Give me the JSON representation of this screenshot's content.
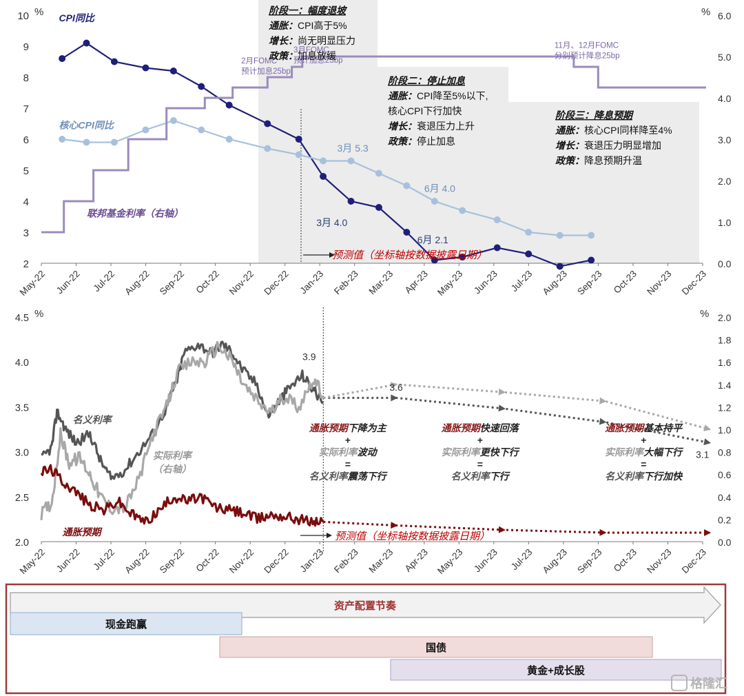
{
  "chart_data": [
    {
      "type": "line",
      "x_categories": [
        "May-22",
        "Jun-22",
        "Jul-22",
        "Aug-22",
        "Sep-22",
        "Oct-22",
        "Nov-22",
        "Dec-22",
        "Jan-23",
        "Feb-23",
        "Mar-23",
        "Apr-23",
        "May-23",
        "Jun-23",
        "Jul-23",
        "Aug-23",
        "Sep-23",
        "Oct-23",
        "Nov-23",
        "Dec-23"
      ],
      "y_left": {
        "unit": "%",
        "ylim": [
          2,
          10
        ],
        "ticks": [
          "2",
          "3",
          "4",
          "5",
          "6",
          "7",
          "8",
          "9",
          "10"
        ]
      },
      "y_right": {
        "unit": "%",
        "ylim": [
          0,
          6
        ],
        "ticks": [
          "0.0",
          "1.0",
          "2.0",
          "3.0",
          "4.0",
          "5.0",
          "6.0"
        ]
      },
      "series": [
        {
          "name": "CPI同比",
          "axis": "left",
          "color": "#1f1f7a",
          "x": [
            0.3,
            1.0,
            1.8,
            2.7,
            3.5,
            4.3,
            5.1,
            6.2,
            7.1,
            7.8,
            8.6,
            9.4,
            10.2,
            11.0,
            11.8,
            12.8,
            13.7,
            14.6,
            15.5
          ],
          "values": [
            8.6,
            9.1,
            8.5,
            8.3,
            8.2,
            7.7,
            7.1,
            6.5,
            6.0,
            4.8,
            4.0,
            3.8,
            3.0,
            2.1,
            2.2,
            2.5,
            2.3,
            1.9,
            2.1
          ]
        },
        {
          "name": "核心CPI同比",
          "axis": "left",
          "color": "#a8c0dc",
          "x": [
            0.3,
            1.0,
            1.8,
            2.7,
            3.5,
            4.3,
            5.1,
            6.2,
            7.1,
            7.8,
            8.6,
            9.4,
            10.2,
            11.0,
            11.8,
            12.8,
            13.7,
            14.6,
            15.5
          ],
          "values": [
            6.0,
            5.9,
            5.9,
            6.3,
            6.6,
            6.3,
            6.0,
            5.7,
            5.5,
            5.3,
            5.3,
            4.9,
            4.5,
            4.0,
            3.7,
            3.4,
            3.0,
            2.9,
            2.9
          ]
        },
        {
          "name": "联邦基金利率（右轴）",
          "axis": "right",
          "color": "#9b8bbd",
          "step": true,
          "x": [
            0,
            0.35,
            0.35,
            1.2,
            1.2,
            2.2,
            2.2,
            3.3,
            3.3,
            4.4,
            4.4,
            5.2,
            5.2,
            6.2,
            6.2,
            6.9,
            6.9,
            7.2,
            7.2,
            15.0,
            15.0,
            15.7,
            15.7,
            16.5
          ],
          "values": [
            0.75,
            0.75,
            1.5,
            1.5,
            2.25,
            2.25,
            3.0,
            3.0,
            3.75,
            3.75,
            4.0,
            4.0,
            4.25,
            4.25,
            4.5,
            4.5,
            4.75,
            4.75,
            5.0,
            5.0,
            4.75,
            4.75,
            4.25,
            4.25
          ]
        }
      ],
      "data_labels": [
        {
          "text": "3月 5.3",
          "x": 8.6,
          "y": 5.6,
          "color": "#6e8fb5"
        },
        {
          "text": "6月 4.0",
          "x": 11.1,
          "y": 4.3,
          "color": "#6e8fb5"
        },
        {
          "text": "3月 4.0",
          "x": 8.0,
          "y": 3.2,
          "color": "#2c3e7a"
        },
        {
          "text": "6月 2.1",
          "x": 10.9,
          "y": 2.65,
          "color": "#2c3e7a"
        }
      ],
      "series_labels": [
        {
          "text": "CPI同比",
          "x": 1.0,
          "y": 9.8,
          "color": "#1f1f7a"
        },
        {
          "text": "核心CPI同比",
          "x": 1.0,
          "y": 6.35,
          "color": "#6e8fb5"
        },
        {
          "text": "联邦基金利率（右轴）",
          "x": 1.8,
          "y": 3.5,
          "color": "#6a4c93"
        }
      ],
      "annotations": [
        {
          "lines": [
            "2月FOMC",
            "预计加息25bp"
          ],
          "x": 6.0,
          "y": 8.45,
          "color": "#7b68a6"
        },
        {
          "lines": [
            "3月FOMC",
            "预计加息25bp"
          ],
          "x": 7.5,
          "y": 8.8,
          "color": "#7b68a6"
        },
        {
          "lines": [
            "11月、12月FOMC",
            "分别预计降息25bp"
          ],
          "x": 15.0,
          "y": 8.95,
          "color": "#7b68a6"
        }
      ],
      "phases": [
        {
          "lines": [
            "阶段一：幅度退坡",
            "通胀：CPI高于5%",
            "增长：尚无明显压力",
            "政策：加息放缓"
          ],
          "bold_prefix": [
            "",
            "通胀：",
            "增长：",
            "政策："
          ]
        },
        {
          "lines": [
            "阶段二：停止加息",
            "通胀：CPI降至5%以下,",
            "核心CPI下行加快",
            "增长：衰退压力上升",
            "政策：停止加息"
          ],
          "bold_prefix": [
            "",
            "通胀：",
            "",
            "增长：",
            "政策："
          ]
        },
        {
          "lines": [
            "阶段三：降息预期",
            "通胀：核心CPI同样降至4%",
            "增长：衰退压力明显增加",
            "政策：降息预期升温"
          ],
          "bold_prefix": [
            "",
            "通胀：",
            "增长：",
            "政策："
          ]
        }
      ],
      "forecast_note": "预测值（坐标轴按数据披露日期）"
    },
    {
      "type": "line",
      "x_categories": [
        "May-22",
        "Jun-22",
        "Jul-22",
        "Aug-22",
        "Sep-22",
        "Oct-22",
        "Nov-22",
        "Dec-22",
        "Jan-23",
        "Feb-23",
        "Mar-23",
        "Apr-23",
        "May-23",
        "Jun-23",
        "Jul-23",
        "Aug-23",
        "Sep-23",
        "Oct-23",
        "Nov-23",
        "Dec-23"
      ],
      "y_left": {
        "unit": "%",
        "ylim": [
          2.0,
          4.5
        ],
        "ticks": [
          "2.0",
          "2.5",
          "3.0",
          "3.5",
          "4.0",
          "4.5"
        ]
      },
      "y_right": {
        "unit": "%",
        "ylim": [
          0,
          2.0
        ],
        "ticks": [
          "0.0",
          "0.2",
          "0.4",
          "0.6",
          "0.8",
          "1.0",
          "1.2",
          "1.4",
          "1.6",
          "1.8",
          "2.0"
        ]
      },
      "series": [
        {
          "name": "名义利率",
          "axis": "left",
          "color": "#555555",
          "historical_anchors": [
            [
              0,
              2.92
            ],
            [
              0.3,
              3.05
            ],
            [
              0.45,
              3.45
            ],
            [
              0.7,
              3.25
            ],
            [
              1.0,
              3.1
            ],
            [
              1.4,
              3.2
            ],
            [
              1.7,
              2.9
            ],
            [
              2.0,
              2.7
            ],
            [
              2.4,
              2.8
            ],
            [
              2.8,
              3.0
            ],
            [
              3.2,
              3.2
            ],
            [
              3.6,
              3.5
            ],
            [
              3.9,
              3.8
            ],
            [
              4.1,
              4.1
            ],
            [
              4.5,
              4.2
            ],
            [
              4.9,
              4.1
            ],
            [
              5.2,
              4.2
            ],
            [
              5.5,
              4.1
            ],
            [
              5.8,
              3.9
            ],
            [
              6.2,
              3.75
            ],
            [
              6.5,
              3.4
            ],
            [
              6.8,
              3.55
            ],
            [
              7.1,
              3.7
            ],
            [
              7.5,
              3.85
            ],
            [
              7.8,
              3.7
            ],
            [
              8.1,
              3.55
            ]
          ],
          "forecast": {
            "x": [
              8.1,
              10.2,
              13.3,
              16.2,
              19.2
            ],
            "values": [
              3.6,
              3.6,
              3.48,
              3.33,
              3.1
            ]
          }
        },
        {
          "name": "实际利率（右轴）",
          "axis": "right",
          "color": "#a8a8a8",
          "historical_anchors": [
            [
              0,
              0.25
            ],
            [
              0.3,
              0.35
            ],
            [
              0.55,
              0.95
            ],
            [
              0.8,
              0.7
            ],
            [
              1.1,
              0.75
            ],
            [
              1.4,
              0.6
            ],
            [
              1.7,
              0.4
            ],
            [
              2.0,
              0.3
            ],
            [
              2.4,
              0.3
            ],
            [
              2.8,
              0.55
            ],
            [
              3.2,
              0.95
            ],
            [
              3.6,
              1.2
            ],
            [
              3.9,
              1.5
            ],
            [
              4.3,
              1.6
            ],
            [
              4.7,
              1.6
            ],
            [
              5.1,
              1.75
            ],
            [
              5.5,
              1.6
            ],
            [
              5.8,
              1.4
            ],
            [
              6.2,
              1.25
            ],
            [
              6.6,
              1.15
            ],
            [
              7.0,
              1.3
            ],
            [
              7.4,
              1.2
            ],
            [
              7.8,
              1.45
            ],
            [
              8.1,
              1.3
            ]
          ],
          "forecast": {
            "x": [
              8.1,
              10.2,
              13.3,
              16.2,
              19.2
            ],
            "values": [
              1.28,
              1.4,
              1.33,
              1.25,
              1.0
            ]
          }
        },
        {
          "name": "通胀预期",
          "axis": "left",
          "color": "#7a0d0d",
          "historical_anchors": [
            [
              0,
              2.78
            ],
            [
              0.3,
              2.8
            ],
            [
              0.6,
              2.68
            ],
            [
              1.0,
              2.55
            ],
            [
              1.4,
              2.4
            ],
            [
              1.8,
              2.35
            ],
            [
              2.2,
              2.45
            ],
            [
              2.6,
              2.3
            ],
            [
              3.0,
              2.22
            ],
            [
              3.4,
              2.35
            ],
            [
              3.8,
              2.5
            ],
            [
              4.2,
              2.45
            ],
            [
              4.6,
              2.5
            ],
            [
              5.0,
              2.38
            ],
            [
              5.4,
              2.35
            ],
            [
              5.8,
              2.32
            ],
            [
              6.2,
              2.25
            ],
            [
              6.6,
              2.3
            ],
            [
              7.0,
              2.28
            ],
            [
              7.4,
              2.25
            ],
            [
              7.8,
              2.22
            ],
            [
              8.1,
              2.22
            ]
          ],
          "forecast": {
            "x": [
              8.1,
              10.2,
              13.3,
              16.2,
              19.2
            ],
            "values": [
              2.22,
              2.18,
              2.13,
              2.1,
              2.1
            ]
          }
        }
      ],
      "data_labels": [
        {
          "text": "3.9",
          "x": 7.7,
          "y": 4.02,
          "color": "#333333"
        },
        {
          "text": "3.6",
          "x": 10.2,
          "y": 3.68,
          "color": "#333333"
        },
        {
          "text": "3.1",
          "x": 19.0,
          "y": 2.93,
          "color": "#333333"
        }
      ],
      "series_labels": [
        {
          "text": "名义利率",
          "x": 1.3,
          "y": 3.32,
          "color": "#555555"
        },
        {
          "text": "实际利率",
          "x": 3.6,
          "y": 2.92,
          "color": "#999999"
        },
        {
          "text": "（右轴）",
          "x": 3.6,
          "y": 2.77,
          "color": "#999999"
        },
        {
          "text": "通胀预期",
          "x": 1.0,
          "y": 2.07,
          "color": "#7a0d0d"
        }
      ],
      "scenarios": [
        {
          "x": 8.8,
          "lines": [
            [
              {
                "t": "通胀预期",
                "c": "#8b1a1a"
              },
              {
                "t": "下降为主",
                "c": "#222222"
              }
            ],
            [
              {
                "t": "+",
                "c": "#222222"
              }
            ],
            [
              {
                "t": "实际利率",
                "c": "#999999"
              },
              {
                "t": "波动",
                "c": "#222222"
              }
            ],
            [
              {
                "t": "=",
                "c": "#222222"
              }
            ],
            [
              {
                "t": "名义利率",
                "c": "#555555"
              },
              {
                "t": "震荡下行",
                "c": "#222222"
              }
            ]
          ]
        },
        {
          "x": 12.6,
          "lines": [
            [
              {
                "t": "通胀预期",
                "c": "#8b1a1a"
              },
              {
                "t": "快速回落",
                "c": "#222222"
              }
            ],
            [
              {
                "t": "+",
                "c": "#222222"
              }
            ],
            [
              {
                "t": "实际利率",
                "c": "#999999"
              },
              {
                "t": "更快下行",
                "c": "#222222"
              }
            ],
            [
              {
                "t": "=",
                "c": "#222222"
              }
            ],
            [
              {
                "t": "名义利率",
                "c": "#555555"
              },
              {
                "t": "下行",
                "c": "#222222"
              }
            ]
          ]
        },
        {
          "x": 17.3,
          "lines": [
            [
              {
                "t": "通胀预期",
                "c": "#8b1a1a"
              },
              {
                "t": "基本持平",
                "c": "#222222"
              }
            ],
            [
              {
                "t": "+",
                "c": "#222222"
              }
            ],
            [
              {
                "t": "实际利率",
                "c": "#999999"
              },
              {
                "t": "大幅下行",
                "c": "#222222"
              }
            ],
            [
              {
                "t": "=",
                "c": "#222222"
              }
            ],
            [
              {
                "t": "名义利率",
                "c": "#555555"
              },
              {
                "t": "下行加快",
                "c": "#222222"
              }
            ]
          ]
        }
      ],
      "forecast_note": "预测值（坐标轴按数据披露日期）"
    }
  ],
  "allocation_panel": {
    "title": "资产配置节奏",
    "bars": [
      {
        "label": "现金跑赢",
        "fill": "#dce6f2",
        "stroke": "#8ea9c8"
      },
      {
        "label": "国债",
        "fill": "#f2dcdb",
        "stroke": "#c9a09e"
      },
      {
        "label": "黄金+成长股",
        "fill": "#e4dfec",
        "stroke": "#aaa0c0"
      }
    ]
  },
  "watermark": "格隆汇"
}
